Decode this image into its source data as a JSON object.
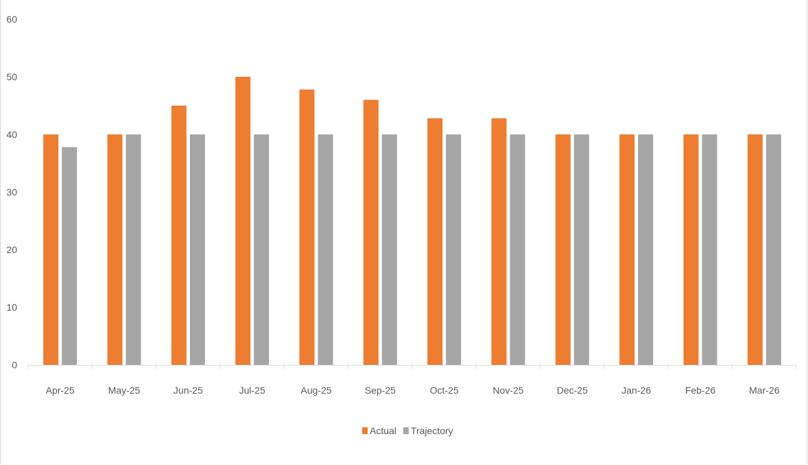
{
  "chart_data": {
    "type": "bar",
    "categories": [
      "Apr-25",
      "May-25",
      "Jun-25",
      "Jul-25",
      "Aug-25",
      "Sep-25",
      "Oct-25",
      "Nov-25",
      "Dec-25",
      "Jan-26",
      "Feb-26",
      "Mar-26"
    ],
    "series": [
      {
        "name": "Actual",
        "color": "#ED7D31",
        "values": [
          40,
          40,
          45,
          50,
          47.8,
          46,
          42.8,
          42.8,
          40,
          40,
          40,
          40
        ]
      },
      {
        "name": "Trajectory",
        "color": "#A5A5A5",
        "values": [
          37.8,
          40,
          40,
          40,
          40,
          40,
          40,
          40,
          40,
          40,
          40,
          40
        ]
      }
    ],
    "yticks": [
      0,
      10,
      20,
      30,
      40,
      50,
      60
    ],
    "ylim": [
      0,
      60
    ],
    "title": "",
    "xlabel": "",
    "ylabel": "",
    "grid": false,
    "legend_position": "bottom-center"
  }
}
